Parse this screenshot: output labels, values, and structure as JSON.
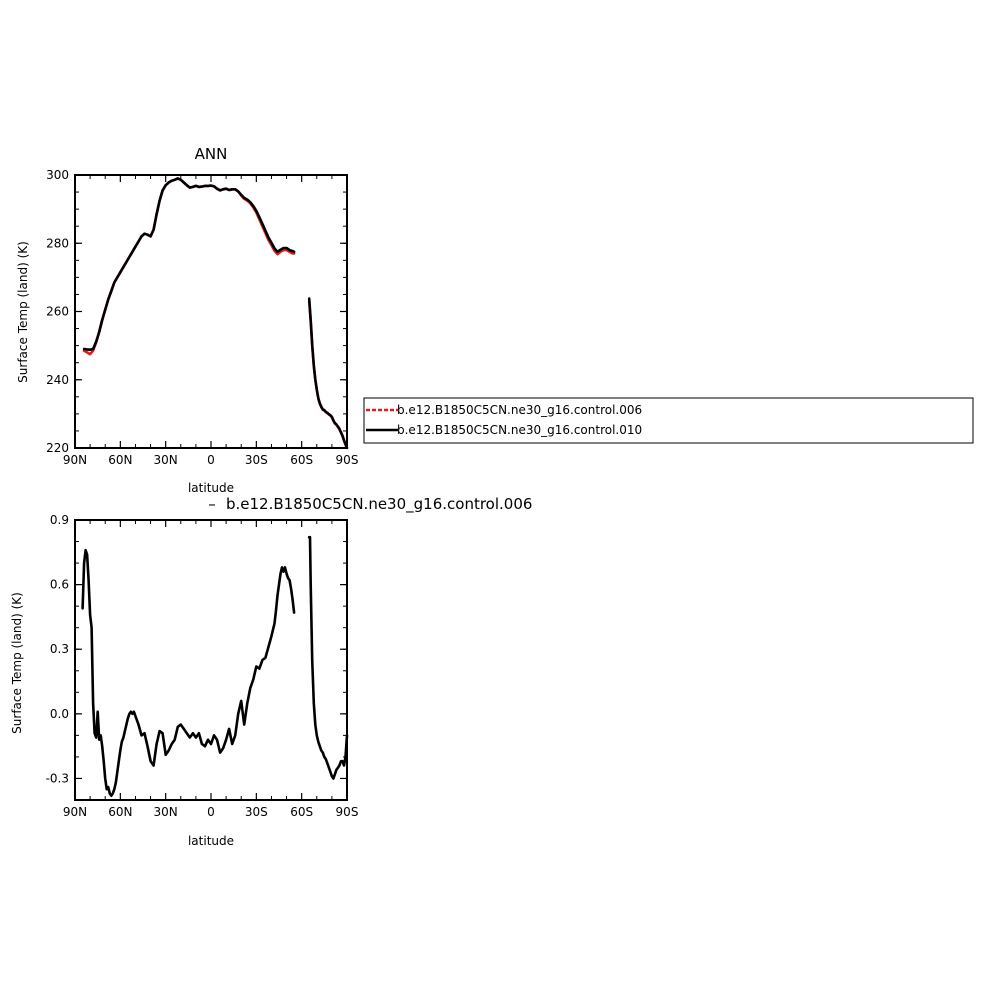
{
  "chart_data": [
    {
      "type": "line",
      "title": "ANN",
      "xlabel": "latitude",
      "ylabel": "Surface Temp (land) (K)",
      "xlim": [
        90,
        -90
      ],
      "ylim": [
        220,
        300
      ],
      "x_ticks": [
        {
          "value": 90,
          "label": "90N"
        },
        {
          "value": 60,
          "label": "60N"
        },
        {
          "value": 30,
          "label": "30N"
        },
        {
          "value": 0,
          "label": "0"
        },
        {
          "value": -30,
          "label": "30S"
        },
        {
          "value": -60,
          "label": "60S"
        },
        {
          "value": -90,
          "label": "90S"
        }
      ],
      "y_ticks": [
        220,
        240,
        260,
        280,
        300
      ],
      "legend": {
        "placement": "right",
        "entries": [
          {
            "label": "b.e12.B1850C5CN.ne30_g16.control.006",
            "color": "#e31a1c",
            "dash": true
          },
          {
            "label": "b.e12.B1850C5CN.ne30_g16.control.010",
            "color": "#000000",
            "dash": false
          }
        ]
      },
      "series": [
        {
          "name": "b.e12.B1850C5CN.ne30_g16.control.006",
          "color": "#e31a1c",
          "segments": [
            {
              "x": [
                84,
                82,
                80,
                78,
                76,
                74,
                72,
                70,
                68,
                66,
                64,
                62,
                60,
                58,
                56,
                54,
                52,
                50,
                48,
                46,
                44,
                42,
                40,
                38,
                36,
                34,
                32,
                30,
                28,
                26,
                24,
                22,
                20,
                18,
                16,
                14,
                12,
                10,
                8,
                6,
                4,
                2,
                0,
                -2,
                -4,
                -6,
                -8,
                -10,
                -12,
                -14,
                -16,
                -18,
                -20,
                -22,
                -24,
                -26,
                -28,
                -30,
                -32,
                -34,
                -36,
                -38,
                -40,
                -42,
                -44,
                -46,
                -48,
                -50,
                -52,
                -54,
                -55
              ],
              "y": [
                248.5,
                248.0,
                247.5,
                248.5,
                251.0,
                254.0,
                257.5,
                260.5,
                263.5,
                266.0,
                268.5,
                270.0,
                271.5,
                273.0,
                274.5,
                276.0,
                277.5,
                279.0,
                280.5,
                282.0,
                282.8,
                282.5,
                282.0,
                284.0,
                288.5,
                292.5,
                295.5,
                297.0,
                297.8,
                298.3,
                298.6,
                299.0,
                298.6,
                297.8,
                297.0,
                296.3,
                296.5,
                296.8,
                296.5,
                296.6,
                296.8,
                296.8,
                296.9,
                296.7,
                296.0,
                295.5,
                295.8,
                296.0,
                295.6,
                295.8,
                295.8,
                295.2,
                294.0,
                293.0,
                292.5,
                291.7,
                290.5,
                289.0,
                287.0,
                285.0,
                283.0,
                281.0,
                279.5,
                277.8,
                276.8,
                277.5,
                278.0,
                278.0,
                277.5,
                277.0,
                277.0
              ]
            },
            {
              "x": [
                -65,
                -66,
                -67,
                -68,
                -69,
                -70,
                -71,
                -72,
                -73,
                -74,
                -75,
                -76,
                -77,
                -78,
                -79,
                -80,
                -81,
                -82,
                -83,
                -84,
                -85,
                -86,
                -87,
                -88,
                -89,
                -90
              ],
              "y": [
                263.0,
                257.0,
                250.0,
                244.0,
                240.0,
                237.0,
                234.5,
                233.0,
                232.0,
                231.2,
                231.0,
                230.5,
                230.2,
                229.8,
                229.5,
                229.0,
                228.0,
                227.2,
                226.8,
                226.2,
                225.5,
                224.5,
                223.5,
                222.2,
                221.0,
                220.0
              ]
            }
          ]
        },
        {
          "name": "b.e12.B1850C5CN.ne30_g16.control.010",
          "color": "#000000",
          "segments": [
            {
              "x": [
                84,
                82,
                80,
                78,
                76,
                74,
                72,
                70,
                68,
                66,
                64,
                62,
                60,
                58,
                56,
                54,
                52,
                50,
                48,
                46,
                44,
                42,
                40,
                38,
                36,
                34,
                32,
                30,
                28,
                26,
                24,
                22,
                20,
                18,
                16,
                14,
                12,
                10,
                8,
                6,
                4,
                2,
                0,
                -2,
                -4,
                -6,
                -8,
                -10,
                -12,
                -14,
                -16,
                -18,
                -20,
                -22,
                -24,
                -26,
                -28,
                -30,
                -32,
                -34,
                -36,
                -38,
                -40,
                -42,
                -44,
                -46,
                -48,
                -50,
                -52,
                -54,
                -55
              ],
              "y": [
                249.0,
                248.9,
                248.8,
                249.0,
                251.2,
                254.0,
                257.5,
                260.5,
                263.5,
                266.0,
                268.5,
                270.0,
                271.5,
                273.0,
                274.5,
                276.0,
                277.5,
                279.0,
                280.5,
                282.0,
                282.8,
                282.5,
                282.0,
                284.0,
                288.5,
                292.5,
                295.5,
                297.0,
                297.8,
                298.3,
                298.6,
                299.0,
                298.6,
                297.8,
                297.0,
                296.3,
                296.5,
                296.8,
                296.5,
                296.6,
                296.8,
                296.8,
                296.9,
                296.7,
                296.0,
                295.5,
                295.8,
                296.0,
                295.6,
                295.8,
                295.8,
                295.2,
                294.2,
                293.3,
                292.8,
                292.0,
                290.9,
                289.5,
                287.6,
                285.7,
                283.7,
                281.7,
                280.2,
                278.5,
                277.5,
                278.1,
                278.6,
                278.6,
                278.0,
                277.7,
                277.5
              ]
            },
            {
              "x": [
                -65,
                -66,
                -67,
                -68,
                -69,
                -70,
                -71,
                -72,
                -73,
                -74,
                -75,
                -76,
                -77,
                -78,
                -79,
                -80,
                -81,
                -82,
                -83,
                -84,
                -85,
                -86,
                -87,
                -88,
                -89,
                -90
              ],
              "y": [
                263.8,
                257.5,
                250.3,
                244.2,
                240.1,
                237.1,
                234.6,
                233.1,
                232.1,
                231.3,
                231.1,
                230.6,
                230.3,
                229.9,
                229.6,
                229.1,
                228.1,
                227.3,
                226.9,
                226.3,
                225.6,
                224.6,
                223.6,
                222.3,
                221.1,
                220.1
              ]
            }
          ]
        }
      ]
    },
    {
      "type": "line",
      "title": "b.e12.B1850C5CN.ne30_g16.control.006",
      "title_marker": "–",
      "xlabel": "latitude",
      "ylabel": "Surface Temp (land) (K)",
      "xlim": [
        90,
        -90
      ],
      "ylim": [
        -0.4,
        0.9
      ],
      "x_ticks": [
        {
          "value": 90,
          "label": "90N"
        },
        {
          "value": 60,
          "label": "60N"
        },
        {
          "value": 30,
          "label": "30N"
        },
        {
          "value": 0,
          "label": "0"
        },
        {
          "value": -30,
          "label": "30S"
        },
        {
          "value": -60,
          "label": "60S"
        },
        {
          "value": -90,
          "label": "90S"
        }
      ],
      "y_ticks": [
        {
          "value": 0.9,
          "label": "0.9"
        },
        {
          "value": 0.6,
          "label": "0.6"
        },
        {
          "value": 0.3,
          "label": "0.3"
        },
        {
          "value": 0.0,
          "label": "0.0"
        },
        {
          "value": -0.3,
          "label": "-0.3"
        }
      ],
      "series": [
        {
          "color": "#000000",
          "segments": [
            {
              "x": [
                85,
                84,
                83,
                82,
                81,
                80,
                79,
                78,
                77,
                76,
                75,
                74,
                73,
                72,
                71,
                70,
                69,
                68,
                67,
                66,
                65,
                64,
                63,
                62,
                61,
                60,
                59,
                58,
                57,
                56,
                55,
                54,
                53,
                52,
                51,
                50,
                48,
                46,
                44,
                42,
                40,
                38,
                36,
                34,
                32,
                30,
                28,
                26,
                24,
                22,
                20,
                18,
                16,
                14,
                12,
                10,
                8,
                6,
                4,
                2,
                0,
                -2,
                -4,
                -6,
                -8,
                -10,
                -12,
                -14,
                -16,
                -18,
                -20,
                -22,
                -24,
                -26,
                -28,
                -30,
                -32,
                -34,
                -36,
                -38,
                -40,
                -42,
                -43,
                -44,
                -45,
                -46,
                -47,
                -48,
                -49,
                -50,
                -51,
                -52,
                -53,
                -54,
                -55
              ],
              "y": [
                0.49,
                0.7,
                0.76,
                0.74,
                0.62,
                0.46,
                0.4,
                0.05,
                -0.09,
                -0.11,
                0.01,
                -0.12,
                -0.1,
                -0.15,
                -0.22,
                -0.3,
                -0.35,
                -0.34,
                -0.37,
                -0.38,
                -0.37,
                -0.35,
                -0.32,
                -0.27,
                -0.22,
                -0.17,
                -0.13,
                -0.11,
                -0.08,
                -0.05,
                -0.02,
                0.0,
                0.01,
                0.0,
                0.01,
                -0.01,
                -0.05,
                -0.1,
                -0.09,
                -0.15,
                -0.22,
                -0.24,
                -0.14,
                -0.08,
                -0.09,
                -0.19,
                -0.17,
                -0.14,
                -0.12,
                -0.06,
                -0.05,
                -0.07,
                -0.09,
                -0.11,
                -0.09,
                -0.11,
                -0.09,
                -0.14,
                -0.15,
                -0.12,
                -0.14,
                -0.1,
                -0.12,
                -0.18,
                -0.16,
                -0.12,
                -0.07,
                -0.14,
                -0.1,
                0.0,
                0.06,
                -0.05,
                0.05,
                0.12,
                0.16,
                0.22,
                0.21,
                0.25,
                0.26,
                0.31,
                0.36,
                0.42,
                0.48,
                0.55,
                0.6,
                0.65,
                0.68,
                0.66,
                0.68,
                0.65,
                0.63,
                0.62,
                0.58,
                0.53,
                0.47
              ]
            },
            {
              "x": [
                -65,
                -65.5,
                -66,
                -67,
                -68,
                -69,
                -70,
                -71,
                -72,
                -73,
                -74,
                -75,
                -76,
                -77,
                -78,
                -79,
                -80,
                -81,
                -82,
                -83,
                -84,
                -85,
                -86,
                -87,
                -88,
                -89,
                -90
              ],
              "y": [
                0.82,
                0.82,
                0.6,
                0.25,
                0.05,
                -0.05,
                -0.1,
                -0.13,
                -0.15,
                -0.17,
                -0.18,
                -0.2,
                -0.21,
                -0.23,
                -0.25,
                -0.27,
                -0.29,
                -0.3,
                -0.28,
                -0.26,
                -0.25,
                -0.24,
                -0.22,
                -0.22,
                -0.24,
                -0.2,
                -0.1
              ]
            }
          ]
        }
      ]
    }
  ]
}
